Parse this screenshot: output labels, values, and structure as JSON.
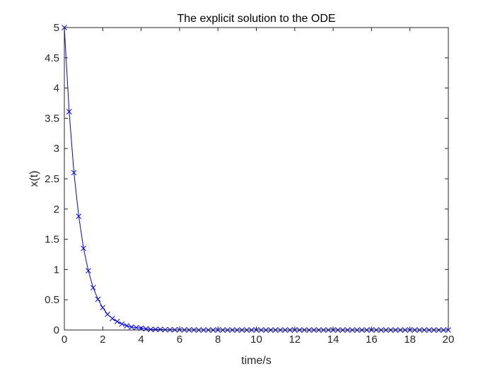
{
  "chart_data": {
    "type": "line",
    "title": "The explicit solution to the ODE",
    "xlabel": "time/s",
    "ylabel": "x(t)",
    "xlim": [
      0,
      20
    ],
    "ylim": [
      0,
      5
    ],
    "xticks": [
      0,
      2,
      4,
      6,
      8,
      10,
      12,
      14,
      16,
      18,
      20
    ],
    "yticks": [
      0,
      0.5,
      1,
      1.5,
      2,
      2.5,
      3,
      3.5,
      4,
      4.5,
      5
    ],
    "xtick_labels": [
      "0",
      "2",
      "4",
      "6",
      "8",
      "10",
      "12",
      "14",
      "16",
      "18",
      "20"
    ],
    "ytick_labels": [
      "0",
      "0.5",
      "1",
      "1.5",
      "2",
      "2.5",
      "3",
      "3.5",
      "4",
      "4.5",
      "5"
    ],
    "grid": false,
    "marker": "x",
    "series": [
      {
        "color": "#0000ff",
        "x": [
          0,
          0.25,
          0.5,
          0.75,
          1,
          1.25,
          1.5,
          1.75,
          2,
          2.25,
          2.5,
          2.75,
          3,
          3.25,
          3.5,
          3.75,
          4,
          4.25,
          4.5,
          4.75,
          5,
          5.25,
          5.5,
          5.75,
          6,
          6.25,
          6.5,
          6.75,
          7,
          7.25,
          7.5,
          7.75,
          8,
          8.25,
          8.5,
          8.75,
          9,
          9.25,
          9.5,
          9.75,
          10,
          10.25,
          10.5,
          10.75,
          11,
          11.25,
          11.5,
          11.75,
          12,
          12.25,
          12.5,
          12.75,
          13,
          13.25,
          13.5,
          13.75,
          14,
          14.25,
          14.5,
          14.75,
          15,
          15.25,
          15.5,
          15.75,
          16,
          16.25,
          16.5,
          16.75,
          17,
          17.25,
          17.5,
          17.75,
          18,
          18.25,
          18.5,
          18.75,
          19,
          19.25,
          19.5,
          19.75,
          20
        ],
        "values": [
          5,
          3.61,
          2.6,
          1.88,
          1.35,
          0.98,
          0.7,
          0.51,
          0.37,
          0.26,
          0.19,
          0.14,
          0.1,
          0.07,
          0.05,
          0.04,
          0.03,
          0.02,
          0.01,
          0.01,
          0.01,
          0.005,
          0.004,
          0.003,
          0.002,
          0.001,
          0.001,
          0.001,
          0,
          0,
          0,
          0,
          0,
          0,
          0,
          0,
          0,
          0,
          0,
          0,
          0,
          0,
          0,
          0,
          0,
          0,
          0,
          0,
          0,
          0,
          0,
          0,
          0,
          0,
          0,
          0,
          0,
          0,
          0,
          0,
          0,
          0,
          0,
          0,
          0,
          0,
          0,
          0,
          0,
          0,
          0,
          0,
          0,
          0,
          0,
          0,
          0,
          0,
          0,
          0,
          0
        ]
      }
    ]
  }
}
